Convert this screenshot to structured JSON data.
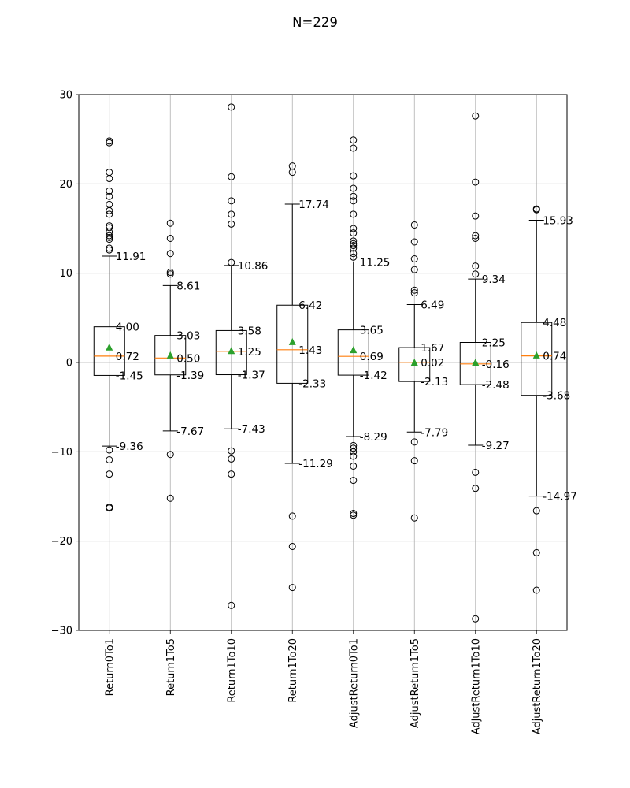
{
  "chart_data": {
    "type": "box",
    "title": "N=229",
    "xlabel": "",
    "ylabel": "",
    "ylim": [
      -30,
      30
    ],
    "yticks": [
      -30,
      -20,
      -10,
      0,
      10,
      20,
      30
    ],
    "ytick_labels": [
      "−30",
      "−20",
      "−10",
      "0",
      "10",
      "20",
      "30"
    ],
    "grid": true,
    "categories": [
      "Return0To1",
      "Return1To5",
      "Return1To10",
      "Return1To20",
      "AdjustReturn0To1",
      "AdjustReturn1To5",
      "AdjustReturn1To10",
      "AdjustReturn1To20"
    ],
    "series": [
      {
        "upper_whisker": 11.91,
        "q3": 4.0,
        "median": 0.72,
        "q1": -1.45,
        "lower_whisker": -9.36,
        "mean": 1.7,
        "labels": {
          "upper_whisker": "11.91",
          "q3": "4.00",
          "median": "0.72",
          "q1": "-1.45",
          "lower_whisker": "-9.36"
        },
        "outliers": [
          24.8,
          24.6,
          21.3,
          20.6,
          19.2,
          18.6,
          17.7,
          17.0,
          16.6,
          15.3,
          15.1,
          14.6,
          14.2,
          14.0,
          13.8,
          12.8,
          12.6,
          -9.8,
          -10.9,
          -12.5,
          -16.2,
          -16.3
        ]
      },
      {
        "upper_whisker": 8.61,
        "q3": 3.03,
        "median": 0.5,
        "q1": -1.39,
        "lower_whisker": -7.67,
        "mean": 0.8,
        "labels": {
          "upper_whisker": "8.61",
          "q3": "3.03",
          "median": "0.50",
          "q1": "-1.39",
          "lower_whisker": "-7.67"
        },
        "outliers": [
          15.6,
          13.9,
          12.2,
          10.1,
          9.9,
          -10.3,
          -15.2
        ]
      },
      {
        "upper_whisker": 10.86,
        "q3": 3.58,
        "median": 1.25,
        "q1": -1.37,
        "lower_whisker": -7.43,
        "mean": 1.3,
        "labels": {
          "upper_whisker": "10.86",
          "q3": "3.58",
          "median": "1.25",
          "q1": "-1.37",
          "lower_whisker": "-7.43"
        },
        "outliers": [
          28.6,
          20.8,
          18.1,
          16.6,
          15.5,
          11.2,
          -9.9,
          -10.8,
          -12.5,
          -27.2
        ]
      },
      {
        "upper_whisker": 17.74,
        "q3": 6.42,
        "median": 1.43,
        "q1": -2.33,
        "lower_whisker": -11.29,
        "mean": 2.3,
        "labels": {
          "upper_whisker": "17.74",
          "q3": "6.42",
          "median": "1.43",
          "q1": "-2.33",
          "lower_whisker": "-11.29"
        },
        "outliers": [
          22.0,
          21.3,
          -17.2,
          -20.6,
          -25.2
        ]
      },
      {
        "upper_whisker": 11.25,
        "q3": 3.65,
        "median": 0.69,
        "q1": -1.42,
        "lower_whisker": -8.29,
        "mean": 1.4,
        "labels": {
          "upper_whisker": "11.25",
          "q3": "3.65",
          "median": "0.69",
          "q1": "-1.42",
          "lower_whisker": "-8.29"
        },
        "outliers": [
          24.9,
          24.0,
          20.9,
          19.5,
          18.6,
          18.1,
          16.6,
          15.0,
          14.5,
          13.6,
          13.3,
          13.1,
          12.8,
          12.2,
          11.8,
          -9.3,
          -9.6,
          -10.0,
          -10.5,
          -11.6,
          -13.2,
          -16.9,
          -17.1
        ]
      },
      {
        "upper_whisker": 6.49,
        "q3": 1.67,
        "median": 0.02,
        "q1": -2.13,
        "lower_whisker": -7.79,
        "mean": 0.0,
        "labels": {
          "upper_whisker": "6.49",
          "q3": "1.67",
          "median": "0.02",
          "q1": "-2.13",
          "lower_whisker": "-7.79"
        },
        "outliers": [
          15.4,
          13.5,
          11.6,
          10.4,
          8.1,
          7.8,
          -8.9,
          -11.0,
          -17.4
        ]
      },
      {
        "upper_whisker": 9.34,
        "q3": 2.25,
        "median": -0.16,
        "q1": -2.48,
        "lower_whisker": -9.27,
        "mean": 0.0,
        "labels": {
          "upper_whisker": "9.34",
          "q3": "2.25",
          "median": "-0.16",
          "q1": "-2.48",
          "lower_whisker": "-9.27"
        },
        "outliers": [
          27.6,
          20.2,
          16.4,
          14.2,
          13.9,
          10.8,
          9.9,
          -12.3,
          -14.1,
          -28.7
        ]
      },
      {
        "upper_whisker": 15.93,
        "q3": 4.48,
        "median": 0.74,
        "q1": -3.68,
        "lower_whisker": -14.97,
        "mean": 0.8,
        "labels": {
          "upper_whisker": "15.93",
          "q3": "4.48",
          "median": "0.74",
          "q1": "-3.68",
          "lower_whisker": "-14.97"
        },
        "outliers": [
          17.2,
          17.1,
          -16.6,
          -21.3,
          -25.5
        ]
      }
    ],
    "colors": {
      "box": "#000000",
      "median": "#ff7f0e",
      "mean": "#2ca02c",
      "grid": "#b0b0b0"
    }
  }
}
